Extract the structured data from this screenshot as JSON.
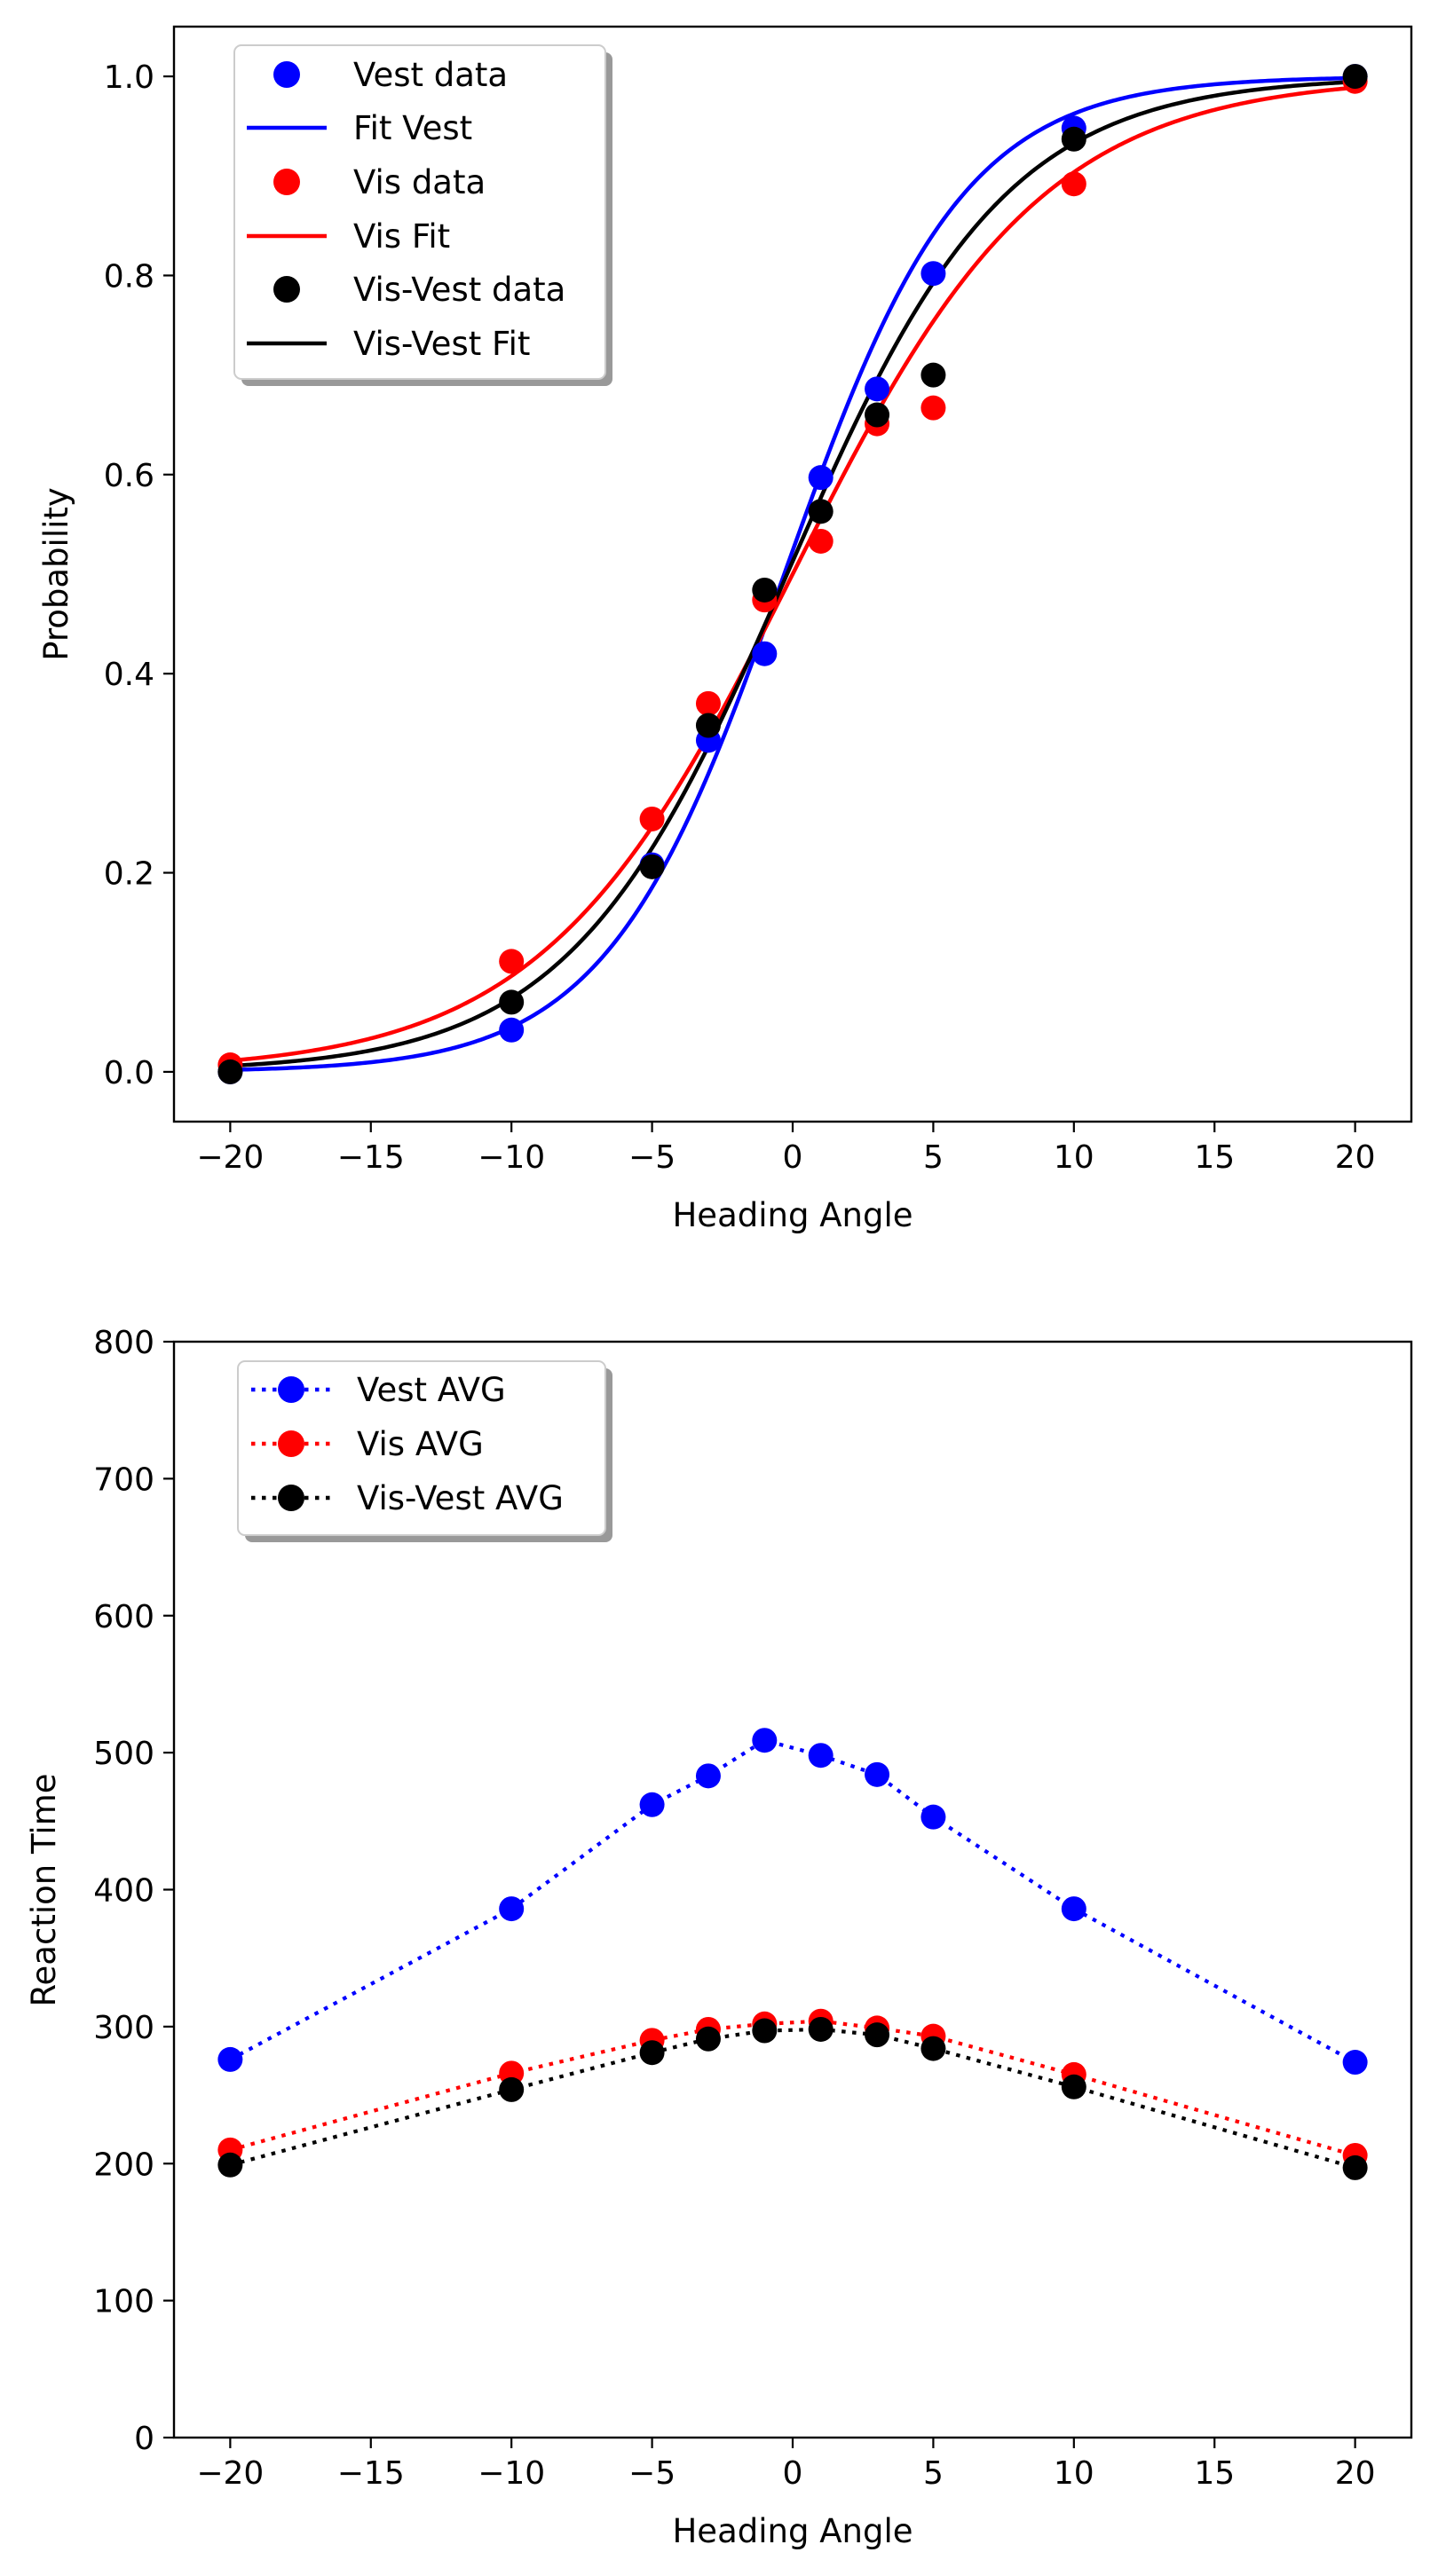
{
  "chart_data": [
    {
      "type": "scatter",
      "title": "",
      "xlabel": "Heading Angle",
      "ylabel": "Probability",
      "xlim": [
        -22,
        22
      ],
      "ylim": [
        -0.05,
        1.05
      ],
      "xticks": [
        -20,
        -15,
        -10,
        -5,
        0,
        5,
        10,
        15,
        20
      ],
      "xtick_labels": [
        "−20",
        "−15",
        "−10",
        "−5",
        "0",
        "5",
        "10",
        "15",
        "20"
      ],
      "yticks": [
        0.0,
        0.2,
        0.4,
        0.6,
        0.8,
        1.0
      ],
      "ytick_labels": [
        "0.0",
        "0.2",
        "0.4",
        "0.6",
        "0.8",
        "1.0"
      ],
      "grid": false,
      "legend_placement": "upper-left",
      "x": [
        -20,
        -10,
        -5,
        -3,
        -1,
        1,
        3,
        5,
        10,
        20
      ],
      "series": [
        {
          "name": "Vest data",
          "kind": "points",
          "color": "#0000ff",
          "values": [
            0.0,
            0.042,
            0.208,
            0.333,
            0.42,
            0.597,
            0.686,
            0.802,
            0.948,
            1.0
          ]
        },
        {
          "name": "Fit Vest",
          "kind": "fit",
          "color": "#0000ff",
          "mu": -0.3,
          "sigma": 5.4
        },
        {
          "name": "Vis data",
          "kind": "points",
          "color": "#ff0000",
          "values": [
            0.007,
            0.111,
            0.254,
            0.37,
            0.474,
            0.533,
            0.651,
            0.667,
            0.892,
            0.995
          ]
        },
        {
          "name": "Vis Fit",
          "kind": "fit",
          "color": "#ff0000",
          "mu": 0.0,
          "sigma": 7.6
        },
        {
          "name": "Vis-Vest data",
          "kind": "points",
          "color": "#000000",
          "values": [
            0.0,
            0.07,
            0.206,
            0.348,
            0.484,
            0.563,
            0.66,
            0.7,
            0.937,
            1.0
          ]
        },
        {
          "name": "Vis-Vest Fit",
          "kind": "fit",
          "color": "#000000",
          "mu": -0.2,
          "sigma": 6.6
        }
      ]
    },
    {
      "type": "line",
      "title": "",
      "xlabel": "Heading Angle",
      "ylabel": "Reaction Time",
      "xlim": [
        -22,
        22
      ],
      "ylim": [
        0,
        800
      ],
      "xticks": [
        -20,
        -15,
        -10,
        -5,
        0,
        5,
        10,
        15,
        20
      ],
      "xtick_labels": [
        "−20",
        "−15",
        "−10",
        "−5",
        "0",
        "5",
        "10",
        "15",
        "20"
      ],
      "yticks": [
        0,
        100,
        200,
        300,
        400,
        500,
        600,
        700,
        800
      ],
      "ytick_labels": [
        "0",
        "100",
        "200",
        "300",
        "400",
        "500",
        "600",
        "700",
        "800"
      ],
      "grid": false,
      "legend_placement": "upper-left",
      "line_style": "dotted",
      "x": [
        -20,
        -10,
        -5,
        -3,
        -1,
        1,
        3,
        5,
        10,
        20
      ],
      "series": [
        {
          "name": "Vest AVG",
          "color": "#0000ff",
          "values": [
            276,
            386,
            462,
            483,
            509,
            498,
            484,
            453,
            386,
            274
          ]
        },
        {
          "name": "Vis AVG",
          "color": "#ff0000",
          "values": [
            210,
            266,
            290,
            298,
            302,
            304,
            299,
            293,
            265,
            206
          ]
        },
        {
          "name": "Vis-Vest AVG",
          "color": "#000000",
          "values": [
            199,
            254,
            281,
            291,
            297,
            298,
            294,
            284,
            256,
            197
          ]
        }
      ]
    }
  ]
}
